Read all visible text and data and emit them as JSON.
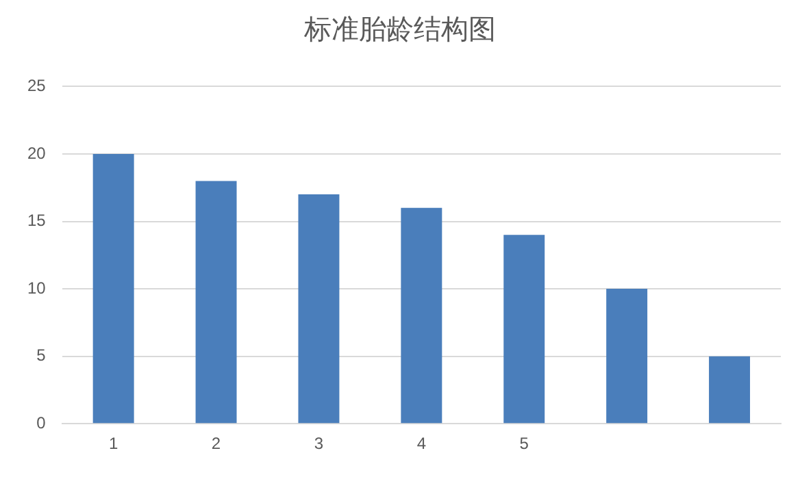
{
  "chart_data": {
    "type": "bar",
    "title": "标准胎龄结构图",
    "categories": [
      "1",
      "2",
      "3",
      "4",
      "5",
      null,
      null
    ],
    "values": [
      20,
      18,
      17,
      16,
      14,
      10,
      5
    ],
    "color": "#4a7ebb",
    "ylim": [
      0,
      25
    ],
    "yticks": [
      0,
      5,
      10,
      15,
      20,
      25
    ],
    "grid": "y"
  }
}
